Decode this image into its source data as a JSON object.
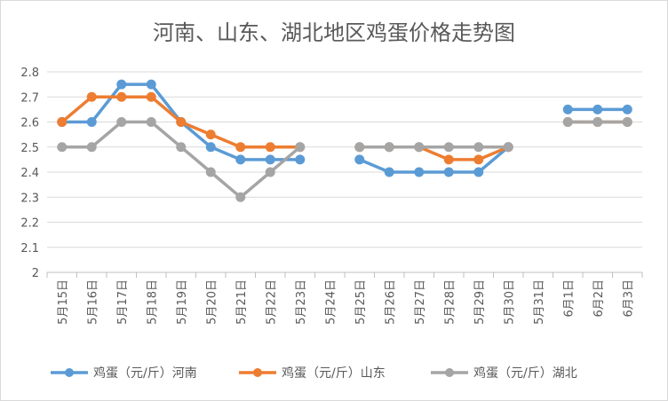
{
  "chart_data": {
    "type": "line",
    "title": "河南、山东、湖北地区鸡蛋价格走势图",
    "categories": [
      "5月15日",
      "5月16日",
      "5月17日",
      "5月18日",
      "5月19日",
      "5月20日",
      "5月21日",
      "5月22日",
      "5月23日",
      "5月24日",
      "5月25日",
      "5月26日",
      "5月27日",
      "5月28日",
      "5月29日",
      "5月30日",
      "5月31日",
      "6月1日",
      "6月2日",
      "6月3日"
    ],
    "ylim": [
      2,
      2.8
    ],
    "yticks": [
      "2",
      "2.1",
      "2.2",
      "2.3",
      "2.4",
      "2.5",
      "2.6",
      "2.7",
      "2.8"
    ],
    "grid": true,
    "legend_position": "bottom",
    "series": [
      {
        "name": "鸡蛋（元/斤）河南",
        "color": "#5b9bd5",
        "values": [
          2.6,
          2.6,
          2.75,
          2.75,
          2.6,
          2.5,
          2.45,
          2.45,
          2.45,
          null,
          2.45,
          2.4,
          2.4,
          2.4,
          2.4,
          2.5,
          null,
          2.65,
          2.65,
          2.65
        ]
      },
      {
        "name": "鸡蛋（元/斤）山东",
        "color": "#ed7d31",
        "values": [
          2.6,
          2.7,
          2.7,
          2.7,
          2.6,
          2.55,
          2.5,
          2.5,
          2.5,
          null,
          2.5,
          2.5,
          2.5,
          2.45,
          2.45,
          2.5,
          null,
          2.6,
          2.6,
          2.6
        ]
      },
      {
        "name": "鸡蛋（元/斤）湖北",
        "color": "#a5a5a5",
        "values": [
          2.5,
          2.5,
          2.6,
          2.6,
          2.5,
          2.4,
          2.3,
          2.4,
          2.5,
          null,
          2.5,
          2.5,
          2.5,
          2.5,
          2.5,
          2.5,
          null,
          2.6,
          2.6,
          2.6
        ]
      }
    ]
  }
}
